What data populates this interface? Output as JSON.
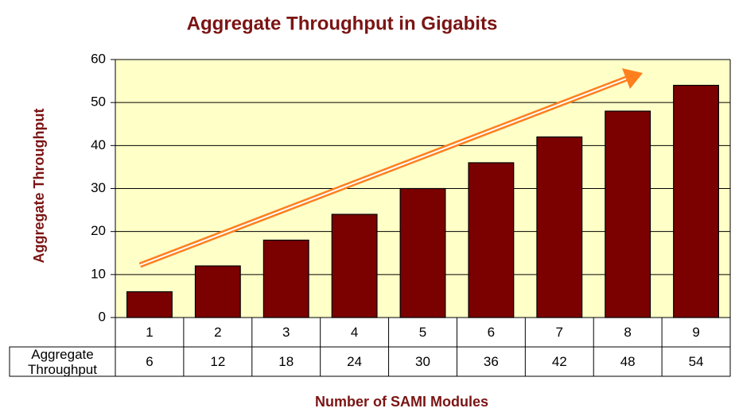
{
  "chart_data": {
    "type": "bar",
    "title": "Aggregate Throughput in Gigabits",
    "y_label": "Aggregate Throughput",
    "x_label": "Number of SAMI Modules",
    "categories": [
      "1",
      "2",
      "3",
      "4",
      "5",
      "6",
      "7",
      "8",
      "9"
    ],
    "series": [
      {
        "name": "Aggregate Throughput",
        "color": "#7b0000",
        "values": [
          6,
          12,
          18,
          24,
          30,
          36,
          42,
          48,
          54
        ]
      }
    ],
    "ylim": [
      0,
      60
    ],
    "yticks": [
      0,
      10,
      20,
      30,
      40,
      50,
      60
    ],
    "grid": true
  }
}
